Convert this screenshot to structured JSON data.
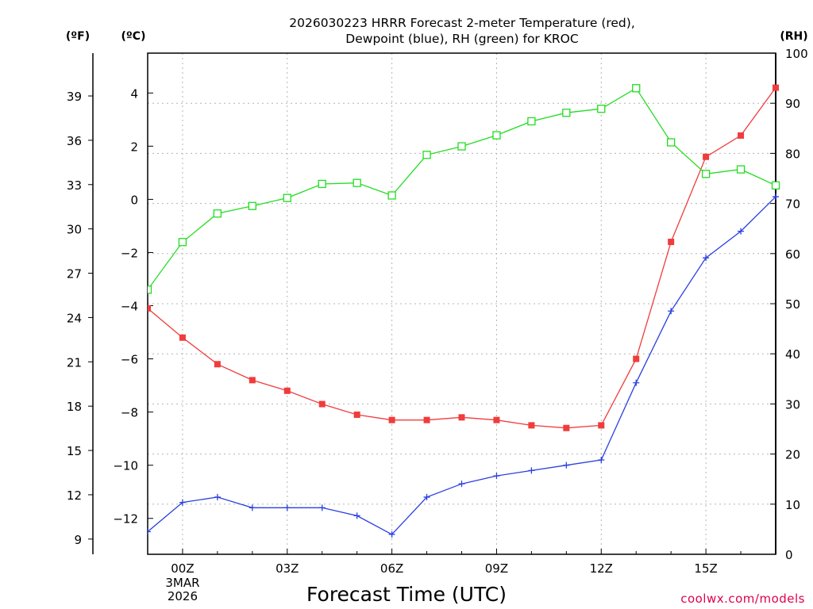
{
  "chart_data": {
    "type": "line",
    "title_lines": [
      "2026030223 HRRR Forecast 2-meter Temperature (red),",
      "Dewpoint (blue), RH (green) for KROC"
    ],
    "xlabel": "Forecast Time (UTC)",
    "credit": "coolwx.com/models",
    "units": {
      "fahrenheit": "(ºF)",
      "celsius": "(ºC)",
      "rh": "(RH)"
    },
    "x_range": [
      -1,
      17
    ],
    "x_ticks": [
      {
        "x": 0,
        "label": "00Z",
        "sub": [
          "3MAR",
          "2026"
        ]
      },
      {
        "x": 3,
        "label": "03Z"
      },
      {
        "x": 6,
        "label": "06Z"
      },
      {
        "x": 9,
        "label": "09Z"
      },
      {
        "x": 12,
        "label": "12Z"
      },
      {
        "x": 15,
        "label": "15Z"
      }
    ],
    "x_grid": [
      0,
      3,
      6,
      9,
      12,
      15
    ],
    "celsius_axis": {
      "range": [
        -13.35,
        5.5
      ],
      "ticks": [
        "4",
        "2",
        "0",
        "−2",
        "−4",
        "−6",
        "−8",
        "−10",
        "−12"
      ],
      "tick_values": [
        4,
        2,
        0,
        -2,
        -4,
        -6,
        -8,
        -10,
        -12
      ]
    },
    "fahrenheit_axis": {
      "ticks": [
        "39",
        "36",
        "33",
        "30",
        "27",
        "24",
        "21",
        "18",
        "15",
        "12",
        "9"
      ],
      "tick_values": [
        39,
        36,
        33,
        30,
        27,
        24,
        21,
        18,
        15,
        12,
        9
      ]
    },
    "rh_axis": {
      "range": [
        0,
        100
      ],
      "ticks": [
        "100",
        "90",
        "80",
        "70",
        "60",
        "50",
        "40",
        "30",
        "20",
        "10",
        "0"
      ],
      "tick_values": [
        100,
        90,
        80,
        70,
        60,
        50,
        40,
        30,
        20,
        10,
        0
      ]
    },
    "series": [
      {
        "name": "2-meter Temperature",
        "axis": "celsius",
        "color": "#f03c3c",
        "marker": "filled-square",
        "x": [
          -1,
          0,
          1,
          2,
          3,
          4,
          5,
          6,
          7,
          8,
          9,
          10,
          11,
          12,
          13,
          14,
          15,
          16,
          17
        ],
        "values": [
          -4.1,
          -5.2,
          -6.2,
          -6.8,
          -7.2,
          -7.7,
          -8.1,
          -8.3,
          -8.3,
          -8.2,
          -8.3,
          -8.5,
          -8.6,
          -8.5,
          -6.0,
          -1.6,
          1.6,
          2.4,
          4.2
        ]
      },
      {
        "name": "Dewpoint",
        "axis": "celsius",
        "color": "#2a3fe0",
        "marker": "plus",
        "x": [
          -1,
          0,
          1,
          2,
          3,
          4,
          5,
          6,
          7,
          8,
          9,
          10,
          11,
          12,
          13,
          14,
          15,
          16,
          17
        ],
        "values": [
          -12.5,
          -11.4,
          -11.2,
          -11.6,
          -11.6,
          -11.6,
          -11.9,
          -12.6,
          -11.2,
          -10.7,
          -10.4,
          -10.2,
          -10.0,
          -9.8,
          -6.9,
          -4.2,
          -2.2,
          -1.2,
          0.1
        ]
      },
      {
        "name": "RH",
        "axis": "rh",
        "color": "#22dd22",
        "marker": "open-square",
        "x": [
          -1,
          0,
          1,
          2,
          3,
          4,
          5,
          6,
          7,
          8,
          9,
          10,
          11,
          12,
          13,
          14,
          15,
          16,
          17
        ],
        "values": [
          52.8,
          62.3,
          68.0,
          69.5,
          71.1,
          73.9,
          74.1,
          71.6,
          79.7,
          81.4,
          83.6,
          86.4,
          88.1,
          88.9,
          93.0,
          82.2,
          75.9,
          76.8,
          73.6
        ]
      }
    ]
  }
}
